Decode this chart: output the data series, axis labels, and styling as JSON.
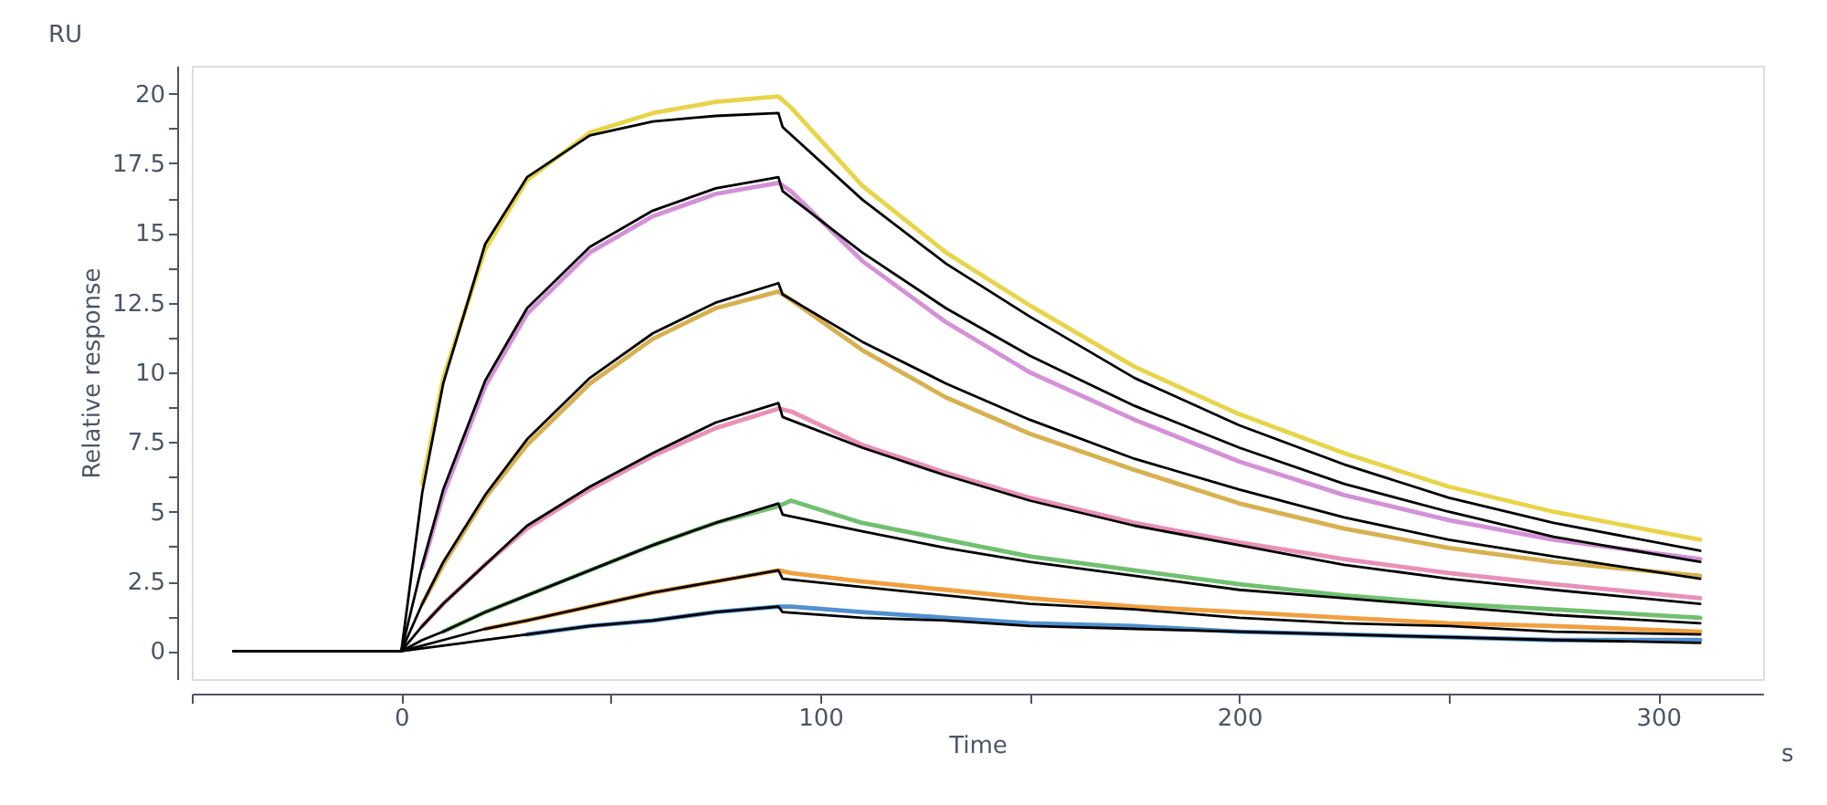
{
  "chart_data": {
    "type": "line",
    "xlabel": "Time",
    "ylabel": "Relative response",
    "annotations": [
      "RU",
      "s"
    ],
    "xlim": [
      -50,
      325
    ],
    "xticks": [
      {
        "value": -50,
        "label": null
      },
      0,
      {
        "value": 50,
        "label": null
      },
      100,
      {
        "value": 150,
        "label": null
      },
      200,
      {
        "value": 250,
        "label": null
      },
      300
    ],
    "ylim": [
      -1,
      21
    ],
    "yticks": [
      0,
      {
        "value": 1.25,
        "label": null
      },
      2.5,
      {
        "value": 3.75,
        "label": null
      },
      5,
      {
        "value": 6.25,
        "label": null
      },
      7.5,
      {
        "value": 8.75,
        "label": null
      },
      10,
      {
        "value": 11.25,
        "label": null
      },
      12.5,
      {
        "value": 13.75,
        "label": null
      },
      15,
      {
        "value": 16.25,
        "label": null
      },
      17.5,
      {
        "value": 18.75,
        "label": null
      },
      20
    ],
    "grid": false,
    "legend": false,
    "marker": "none",
    "line_style": "solid",
    "series": [
      {
        "color": "#e8d448",
        "x": [
          5,
          10,
          20,
          30,
          45,
          60,
          75,
          90,
          93,
          110,
          130,
          150,
          175,
          200,
          225,
          250,
          275,
          310
        ],
        "values": [
          6.0,
          9.8,
          14.4,
          16.9,
          18.6,
          19.3,
          19.7,
          19.9,
          19.5,
          16.7,
          14.3,
          12.4,
          10.2,
          8.5,
          7.1,
          5.9,
          5.0,
          4.0
        ]
      },
      {
        "color": "#d490d8",
        "x": [
          5,
          10,
          20,
          30,
          45,
          60,
          75,
          90,
          93,
          110,
          130,
          150,
          175,
          200,
          225,
          250,
          275,
          310
        ],
        "values": [
          3.0,
          5.6,
          9.5,
          12.1,
          14.3,
          15.6,
          16.4,
          16.8,
          16.5,
          14.0,
          11.8,
          10.0,
          8.3,
          6.8,
          5.6,
          4.7,
          4.0,
          3.3
        ]
      },
      {
        "color": "#d8b050",
        "x": [
          5,
          10,
          20,
          30,
          45,
          60,
          75,
          90,
          93,
          110,
          130,
          150,
          175,
          200,
          225,
          250,
          275,
          310
        ],
        "values": [
          1.7,
          3.1,
          5.5,
          7.4,
          9.6,
          11.2,
          12.3,
          12.9,
          12.6,
          10.8,
          9.1,
          7.8,
          6.5,
          5.3,
          4.4,
          3.7,
          3.2,
          2.7
        ]
      },
      {
        "color": "#e890b8",
        "x": [
          5,
          10,
          20,
          30,
          45,
          60,
          75,
          90,
          93,
          110,
          130,
          150,
          175,
          200,
          225,
          250,
          275,
          310
        ],
        "values": [
          0.9,
          1.7,
          3.1,
          4.4,
          5.8,
          7.0,
          8.0,
          8.7,
          8.6,
          7.4,
          6.4,
          5.5,
          4.6,
          3.9,
          3.3,
          2.8,
          2.4,
          1.9
        ]
      },
      {
        "color": "#70c070",
        "x": [
          10,
          20,
          30,
          45,
          60,
          75,
          90,
          93,
          110,
          130,
          150,
          175,
          200,
          225,
          250,
          275,
          310
        ],
        "values": [
          0.7,
          1.4,
          2.0,
          2.9,
          3.8,
          4.6,
          5.2,
          5.4,
          4.6,
          4.0,
          3.4,
          2.9,
          2.4,
          2.0,
          1.7,
          1.5,
          1.2
        ]
      },
      {
        "color": "#f0a040",
        "x": [
          20,
          30,
          45,
          60,
          75,
          90,
          93,
          110,
          130,
          150,
          175,
          200,
          225,
          250,
          275,
          310
        ],
        "values": [
          0.8,
          1.1,
          1.6,
          2.1,
          2.5,
          2.9,
          2.8,
          2.5,
          2.2,
          1.9,
          1.6,
          1.4,
          1.2,
          1.0,
          0.9,
          0.7
        ]
      },
      {
        "color": "#5090d0",
        "x": [
          30,
          45,
          60,
          75,
          90,
          93,
          110,
          130,
          150,
          175,
          200,
          225,
          250,
          275,
          310
        ],
        "values": [
          0.6,
          0.9,
          1.1,
          1.4,
          1.6,
          1.6,
          1.4,
          1.2,
          1.0,
          0.9,
          0.7,
          0.6,
          0.5,
          0.4,
          0.4
        ]
      },
      {
        "color": "#000000",
        "x": [
          -40,
          0,
          5,
          10,
          20,
          30,
          45,
          60,
          75,
          90,
          91,
          110,
          130,
          150,
          175,
          200,
          225,
          250,
          275,
          310
        ],
        "values": [
          0,
          0,
          5.7,
          9.6,
          14.6,
          17.0,
          18.5,
          19.0,
          19.2,
          19.3,
          18.8,
          16.2,
          13.9,
          12.0,
          9.8,
          8.1,
          6.7,
          5.5,
          4.6,
          3.6
        ]
      },
      {
        "color": "#000000",
        "x": [
          -40,
          0,
          5,
          10,
          20,
          30,
          45,
          60,
          75,
          90,
          91,
          110,
          130,
          150,
          175,
          200,
          225,
          250,
          275,
          310
        ],
        "values": [
          0,
          0,
          3.1,
          5.8,
          9.7,
          12.3,
          14.5,
          15.8,
          16.6,
          17.0,
          16.5,
          14.3,
          12.3,
          10.6,
          8.8,
          7.3,
          6.0,
          5.0,
          4.1,
          3.2
        ]
      },
      {
        "color": "#000000",
        "x": [
          -40,
          0,
          5,
          10,
          20,
          30,
          45,
          60,
          75,
          90,
          91,
          110,
          130,
          150,
          175,
          200,
          225,
          250,
          275,
          310
        ],
        "values": [
          0,
          0,
          1.7,
          3.2,
          5.6,
          7.6,
          9.8,
          11.4,
          12.5,
          13.2,
          12.8,
          11.1,
          9.6,
          8.3,
          6.9,
          5.8,
          4.8,
          4.0,
          3.4,
          2.6
        ]
      },
      {
        "color": "#000000",
        "x": [
          -40,
          0,
          5,
          10,
          20,
          30,
          45,
          60,
          75,
          90,
          91,
          110,
          130,
          150,
          175,
          200,
          225,
          250,
          275,
          310
        ],
        "values": [
          0,
          0,
          0.9,
          1.7,
          3.1,
          4.5,
          5.9,
          7.1,
          8.2,
          8.9,
          8.4,
          7.3,
          6.3,
          5.4,
          4.5,
          3.8,
          3.1,
          2.6,
          2.2,
          1.7
        ]
      },
      {
        "color": "#000000",
        "x": [
          -40,
          0,
          5,
          10,
          20,
          30,
          45,
          60,
          75,
          90,
          91,
          110,
          130,
          150,
          175,
          200,
          225,
          250,
          275,
          310
        ],
        "values": [
          0,
          0,
          0.4,
          0.7,
          1.4,
          2.0,
          2.9,
          3.8,
          4.6,
          5.3,
          4.9,
          4.3,
          3.7,
          3.2,
          2.7,
          2.2,
          1.9,
          1.6,
          1.3,
          1.0
        ]
      },
      {
        "color": "#000000",
        "x": [
          -40,
          0,
          5,
          10,
          20,
          30,
          45,
          60,
          75,
          90,
          91,
          110,
          130,
          150,
          175,
          200,
          225,
          250,
          275,
          310
        ],
        "values": [
          0,
          0,
          0.2,
          0.4,
          0.8,
          1.1,
          1.6,
          2.1,
          2.5,
          2.9,
          2.6,
          2.3,
          2.0,
          1.7,
          1.5,
          1.2,
          1.0,
          0.9,
          0.7,
          0.6
        ]
      },
      {
        "color": "#000000",
        "x": [
          -40,
          0,
          5,
          10,
          20,
          30,
          45,
          60,
          75,
          90,
          91,
          110,
          130,
          150,
          175,
          200,
          225,
          250,
          275,
          310
        ],
        "values": [
          0,
          0,
          0.1,
          0.2,
          0.4,
          0.6,
          0.9,
          1.1,
          1.4,
          1.6,
          1.4,
          1.2,
          1.1,
          0.9,
          0.8,
          0.7,
          0.6,
          0.5,
          0.4,
          0.3
        ]
      }
    ]
  }
}
